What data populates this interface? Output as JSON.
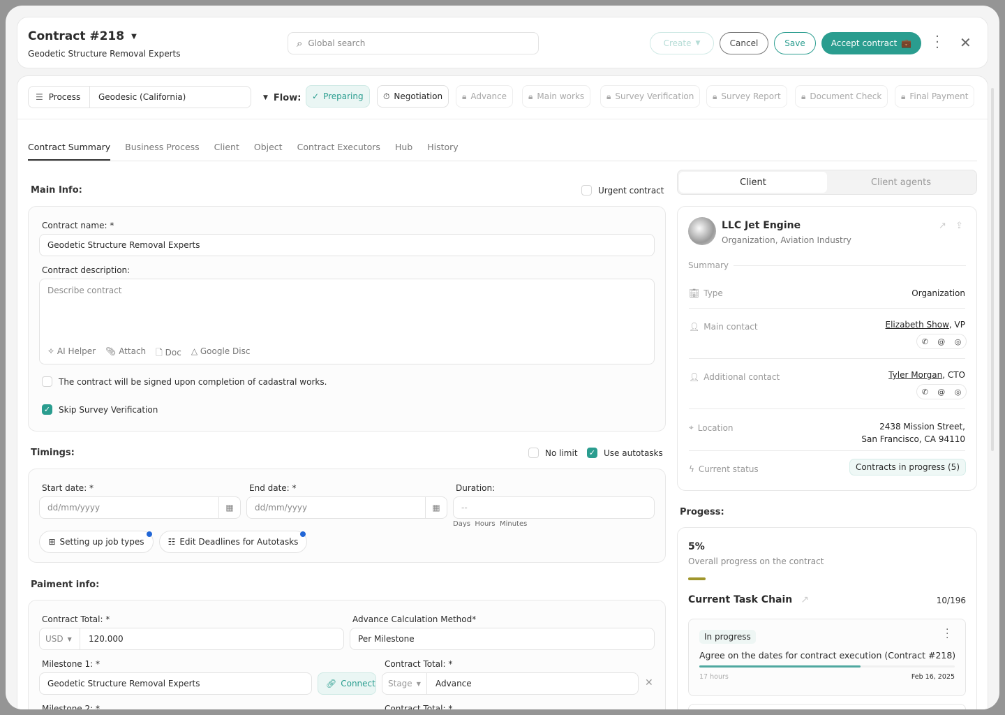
{
  "header": {
    "title": "Contract #218",
    "subtitle": "Geodetic Structure Removal Experts",
    "search_placeholder": "Global search",
    "create": "Create",
    "cancel": "Cancel",
    "save": "Save",
    "accept": "Accept contract"
  },
  "flow": {
    "process_label": "Process",
    "process_value": "Geodesic (California)",
    "flow_label": "Flow:",
    "stages": [
      "Preparing",
      "Negotiation",
      "Advance",
      "Main works",
      "Survey Verification",
      "Survey Report",
      "Document Check",
      "Final Payment"
    ]
  },
  "tabs": [
    "Contract Summary",
    "Business Process",
    "Client",
    "Object",
    "Contract Executors",
    "Hub",
    "History"
  ],
  "main_info": {
    "title": "Main Info:",
    "urgent": "Urgent contract",
    "name_label": "Contract name: *",
    "name_value": "Geodetic Structure Removal Experts",
    "desc_label": "Contract description:",
    "desc_placeholder": "Describe contract",
    "tools": [
      "AI Helper",
      "Attach",
      "Doc",
      "Google Disc"
    ],
    "check1": "The contract will be signed upon completion of cadastral works.",
    "check2": "Skip Survey Verification"
  },
  "timings": {
    "title": "Timings:",
    "no_limit": "No limit",
    "autotasks": "Use autotasks",
    "start_label": "Start date:  *",
    "end_label": "End date: *",
    "duration_label": "Duration:",
    "date_placeholder": "dd/mm/yyyy",
    "duration_value": "--",
    "units": "Days  Hours  Minutes",
    "job_types": "Setting up job types",
    "deadlines": "Edit Deadlines for Autotasks"
  },
  "payment": {
    "title": "Paiment info:",
    "total_label": "Contract Total: *",
    "currency": "USD",
    "total_value": "120.000",
    "method_label": "Advance Calculation Method*",
    "method_value": "Per Milestone",
    "m1_label": "Milestone 1: *",
    "m1_value": "Geodetic Structure Removal Experts",
    "connect": "Connect",
    "m1_total_label": "Contract Total: *",
    "stage": "Stage",
    "stage_value": "Advance",
    "m2_label": "Milestone 2: *",
    "m2_total_label": "Contract Total: *"
  },
  "client": {
    "tabs": [
      "Client",
      "Client agents"
    ],
    "name": "LLC Jet Engine",
    "sub": "Organization, Aviation Industry",
    "summary": "Summary",
    "type_label": "Type",
    "type_value": "Organization",
    "main_contact_label": "Main contact",
    "main_contact_name": "Elizabeth Show",
    "main_contact_role": ", VP",
    "add_contact_label": "Additional contact",
    "add_contact_name": "Tyler Morgan",
    "add_contact_role": ", CTO",
    "location_label": "Location",
    "location_line1": "2438 Mission Street,",
    "location_line2": "San Francisco, CA 94110",
    "status_label": "Current status",
    "status_value": "Contracts in progress (5)"
  },
  "progress": {
    "title": "Progess:",
    "percent": "5%",
    "percent_value": 5,
    "caption": "Overall progress on the contract",
    "chain_title": "Current Task Chain",
    "chain_count": "10/196",
    "task_status": "In progress",
    "task_title": "Agree on the dates for contract execution (Contract #218)",
    "task_progress": 63,
    "task_time": "17 hours",
    "task_date": "Feb 16, 2025"
  },
  "colors": {
    "accent": "#2a9d8f",
    "progress_bar": "#a0962c"
  }
}
